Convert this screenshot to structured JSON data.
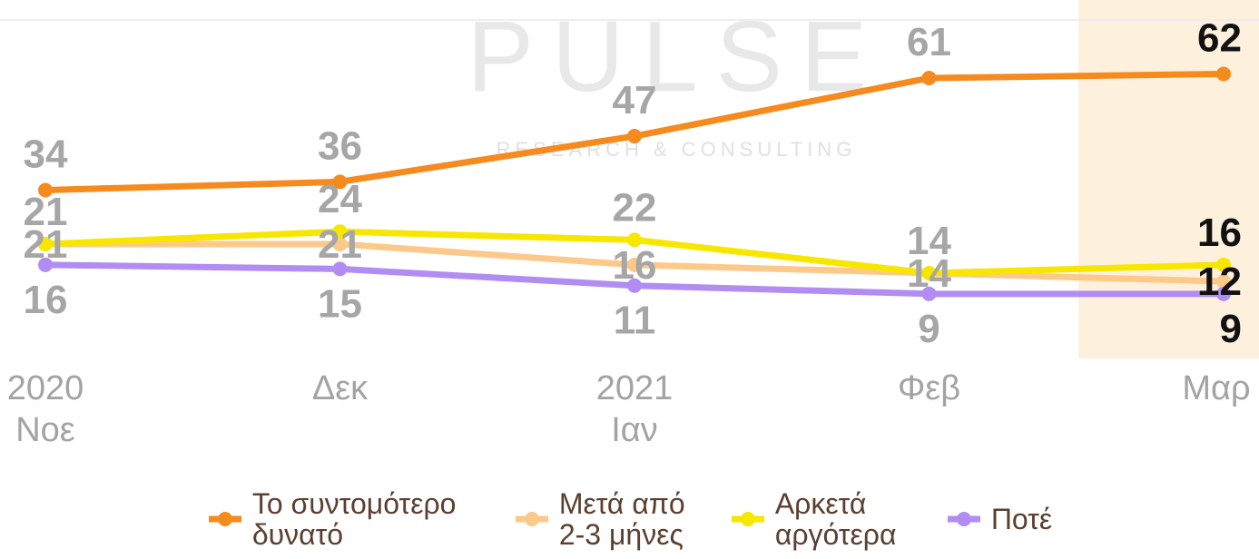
{
  "chart_data": {
    "type": "line",
    "categories": [
      "2020\nΝοε",
      "Δεκ",
      "2021\nΙαν",
      "Φεβ",
      "Μαρ"
    ],
    "series": [
      {
        "name": "Το συντομότερο δυνατό",
        "color": "#f58a1f",
        "values": [
          34,
          36,
          47,
          61,
          62
        ]
      },
      {
        "name": "Μετά από 2-3 μήνες",
        "color": "#fdc98a",
        "values": [
          21,
          21,
          16,
          14,
          12
        ]
      },
      {
        "name": "Αρκετά αργότερα",
        "color": "#f7e600",
        "values": [
          21,
          24,
          22,
          14,
          16
        ]
      },
      {
        "name": "Ποτέ",
        "color": "#b18cf2",
        "values": [
          16,
          15,
          11,
          9,
          9
        ]
      }
    ],
    "ylim": [
      0,
      75
    ],
    "highlight_index": 4,
    "watermark": {
      "title": "PULSE",
      "subtitle": "RESEARCH & CONSULTING"
    }
  }
}
